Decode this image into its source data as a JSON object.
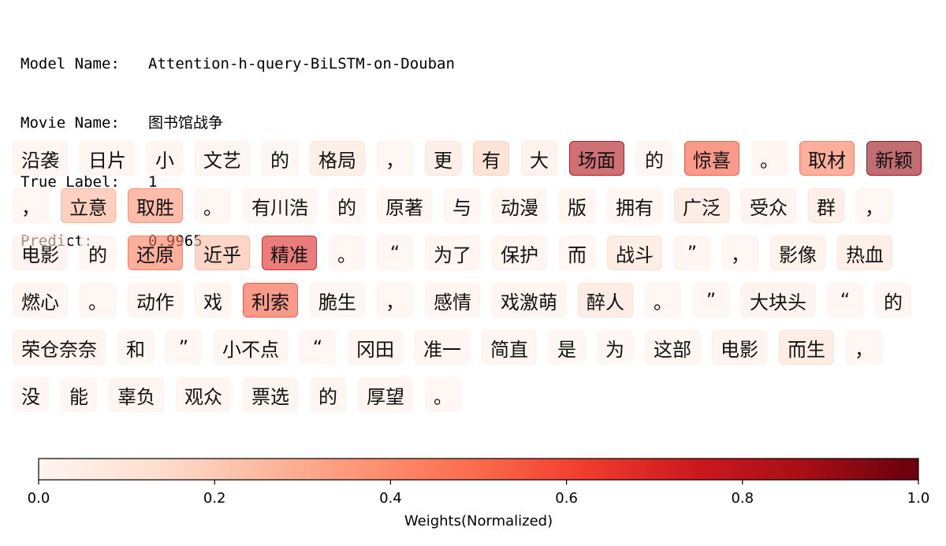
{
  "meta": {
    "model_key": "Model Name:",
    "model_value": "Attention-h-query-BiLSTM-on-Douban",
    "movie_key": "Movie Name:",
    "movie_value": "图书馆战争",
    "label_key": "True Label:",
    "label_value": "1",
    "predict_key": "Predict:",
    "predict_value": "0.9965"
  },
  "chart_data": {
    "type": "heatmap",
    "colormap": "Reds",
    "tokens": [
      [
        [
          "沿袭",
          0.03
        ],
        [
          "日片",
          0.03
        ],
        [
          "小",
          0.03
        ],
        [
          "文艺",
          0.03
        ],
        [
          "的",
          0.02
        ],
        [
          "格局",
          0.1
        ],
        [
          "，",
          0.02
        ],
        [
          "更",
          0.1
        ],
        [
          "有",
          0.18
        ],
        [
          "大",
          0.06
        ],
        [
          "场面",
          0.85
        ],
        [
          "的",
          0.03
        ],
        [
          "惊喜",
          0.55
        ],
        [
          "。",
          0.03
        ],
        [
          "取材",
          0.45
        ],
        [
          "新颖",
          0.9
        ]
      ],
      [
        [
          "，",
          0.02
        ],
        [
          "立意",
          0.28
        ],
        [
          "取胜",
          0.38
        ],
        [
          "。",
          0.02
        ],
        [
          "有川浩",
          0.02
        ],
        [
          "的",
          0.02
        ],
        [
          "原著",
          0.03
        ],
        [
          "与",
          0.02
        ],
        [
          "动漫",
          0.03
        ],
        [
          "版",
          0.03
        ],
        [
          "拥有",
          0.03
        ],
        [
          "广泛",
          0.12
        ],
        [
          "受众",
          0.04
        ],
        [
          "群",
          0.1
        ],
        [
          "，",
          0.02
        ]
      ],
      [
        [
          "电影",
          0.05
        ],
        [
          "的",
          0.02
        ],
        [
          "还原",
          0.45
        ],
        [
          "近乎",
          0.25
        ],
        [
          "精准",
          0.7
        ],
        [
          "。",
          0.02
        ],
        [
          "“",
          0.02
        ],
        [
          "为了",
          0.03
        ],
        [
          "保护",
          0.03
        ],
        [
          "而",
          0.02
        ],
        [
          "战斗",
          0.12
        ],
        [
          "”",
          0.03
        ],
        [
          "，",
          0.02
        ],
        [
          "影像",
          0.06
        ],
        [
          "热血",
          0.1
        ]
      ],
      [
        [
          "燃心",
          0.03
        ],
        [
          "。",
          0.02
        ],
        [
          "动作",
          0.03
        ],
        [
          "戏",
          0.03
        ],
        [
          "利索",
          0.55
        ],
        [
          "脆生",
          0.02
        ],
        [
          "，",
          0.02
        ],
        [
          "感情",
          0.03
        ],
        [
          "戏激萌",
          0.03
        ],
        [
          "醉人",
          0.12
        ],
        [
          "。",
          0.02
        ],
        [
          "”",
          0.02
        ],
        [
          "大块头",
          0.04
        ],
        [
          "“",
          0.02
        ],
        [
          "的",
          0.02
        ]
      ],
      [
        [
          "荣仓奈奈",
          0.04
        ],
        [
          "和",
          0.02
        ],
        [
          "”",
          0.02
        ],
        [
          "小不点",
          0.03
        ],
        [
          "“",
          0.02
        ],
        [
          "冈田",
          0.03
        ],
        [
          "准一",
          0.03
        ],
        [
          "简直",
          0.03
        ],
        [
          "是",
          0.02
        ],
        [
          "为",
          0.02
        ],
        [
          "这部",
          0.03
        ],
        [
          "电影",
          0.04
        ],
        [
          "而生",
          0.12
        ],
        [
          "，",
          0.02
        ]
      ],
      [
        [
          "没",
          0.02
        ],
        [
          "能",
          0.02
        ],
        [
          "辜负",
          0.03
        ],
        [
          "观众",
          0.03
        ],
        [
          "票选",
          0.03
        ],
        [
          "的",
          0.03
        ],
        [
          "厚望",
          0.03
        ],
        [
          "。",
          0.02
        ]
      ]
    ],
    "colorbar": {
      "vmin": 0.0,
      "vmax": 1.0,
      "ticks": [
        0.0,
        0.2,
        0.4,
        0.6,
        0.8,
        1.0
      ],
      "tick_labels": [
        "0.0",
        "0.2",
        "0.4",
        "0.6",
        "0.8",
        "1.0"
      ],
      "label": "Weights(Normalized)"
    }
  }
}
